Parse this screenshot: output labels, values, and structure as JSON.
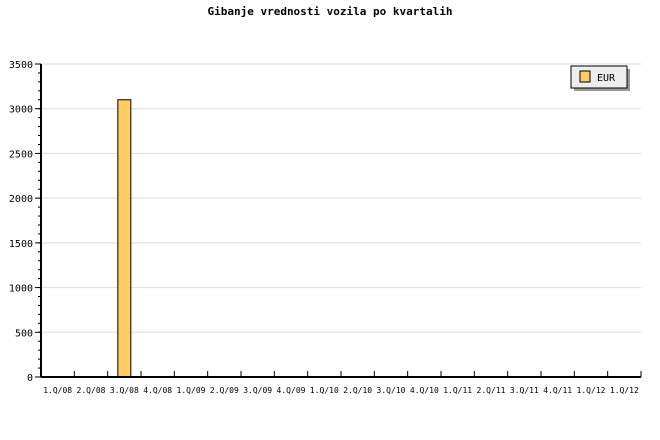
{
  "chart_data": {
    "type": "bar",
    "title": "Gibanje vrednosti vozila po kvartalih",
    "categories": [
      "1.Q/08",
      "2.Q/08",
      "3.Q/08",
      "4.Q/08",
      "1.Q/09",
      "2.Q/09",
      "3.Q/09",
      "4.Q/09",
      "1.Q/10",
      "2.Q/10",
      "3.Q/10",
      "4.Q/10",
      "1.Q/11",
      "2.Q/11",
      "3.Q/11",
      "4.Q/11",
      "1.Q/12",
      "1.Q/12"
    ],
    "series": [
      {
        "name": "EUR",
        "values": [
          0,
          0,
          3100,
          0,
          0,
          0,
          0,
          0,
          0,
          0,
          0,
          0,
          0,
          0,
          0,
          0,
          0,
          0
        ],
        "color": "#ffcc66"
      }
    ],
    "ylim": [
      0,
      3500
    ],
    "yticks": [
      0,
      500,
      1000,
      1500,
      2000,
      2500,
      3000,
      3500
    ],
    "grid": true,
    "legend": "top-right"
  }
}
